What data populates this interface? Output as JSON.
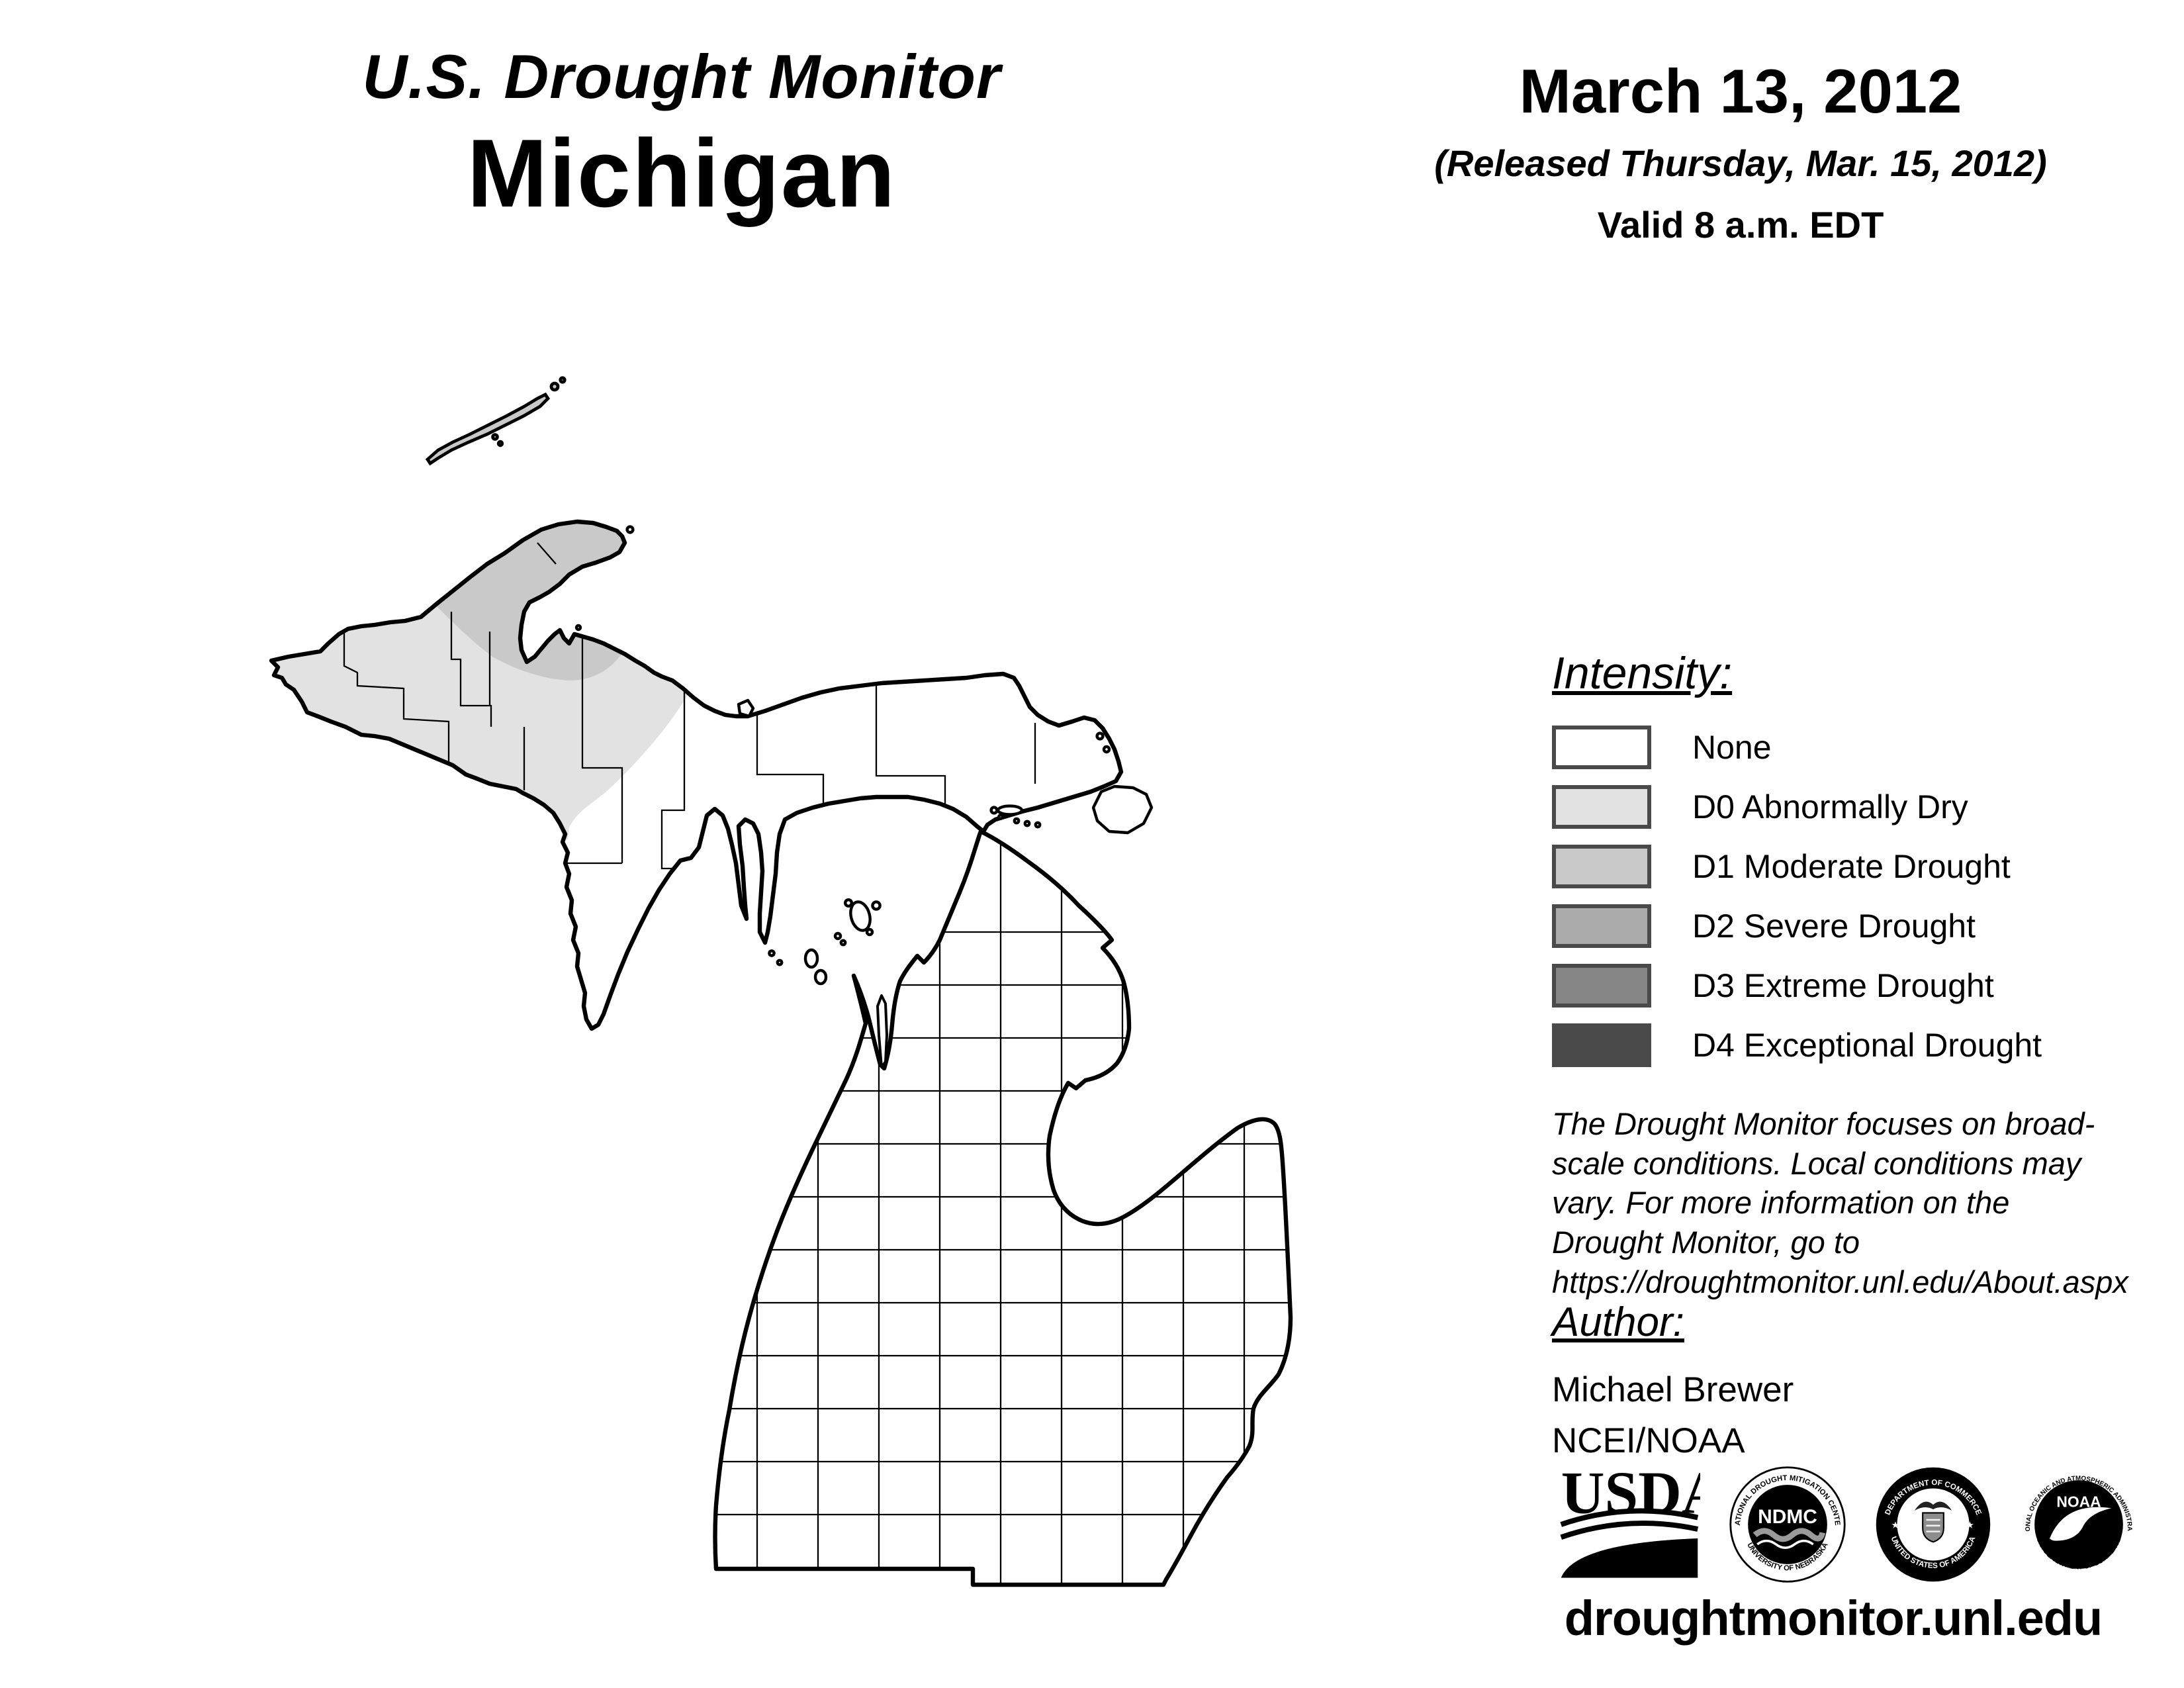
{
  "header": {
    "title": "U.S. Drought Monitor",
    "region": "Michigan",
    "date": "March 13, 2012",
    "released": "(Released Thursday, Mar. 15, 2012)",
    "valid": "Valid 8 a.m. EDT"
  },
  "legend": {
    "title": "Intensity:",
    "items": [
      {
        "label": "None",
        "color": "#FFFFFF"
      },
      {
        "label": "D0 Abnormally Dry",
        "color": "#E2E2E2"
      },
      {
        "label": "D1 Moderate Drought",
        "color": "#C9C9C9"
      },
      {
        "label": "D2 Severe Drought",
        "color": "#ABABAB"
      },
      {
        "label": "D3 Extreme Drought",
        "color": "#858585"
      },
      {
        "label": "D4 Exceptional Drought",
        "color": "#4A4A4A"
      }
    ]
  },
  "map": {
    "state": "Michigan",
    "shading": [
      {
        "level": "D0",
        "area": "western Upper Peninsula"
      },
      {
        "level": "D1",
        "area": "Keweenaw Peninsula area and Isle Royale"
      }
    ]
  },
  "disclaimer": "The Drought Monitor focuses on broad-scale conditions. Local conditions may vary. For more information on the Drought Monitor, go to https://droughtmonitor.unl.edu/About.aspx",
  "author": {
    "title": "Author:",
    "name": "Michael Brewer",
    "org": "NCEI/NOAA"
  },
  "site_url": "droughtmonitor.unl.edu",
  "logos": {
    "usda": {
      "text": "USDA"
    },
    "ndmc": {
      "text": "NDMC",
      "arc_top": "NATIONAL DROUGHT MITIGATION CENTER",
      "arc_bottom": "UNIVERSITY OF NEBRASKA"
    },
    "doc": {
      "arc_top": "DEPARTMENT OF COMMERCE",
      "arc_bottom": "UNITED STATES OF AMERICA"
    },
    "noaa": {
      "text": "NOAA",
      "arc_top": "NATIONAL OCEANIC AND ATMOSPHERIC ADMINISTRATION",
      "arc_bottom": "U.S. DEPARTMENT OF COMMERCE"
    }
  }
}
